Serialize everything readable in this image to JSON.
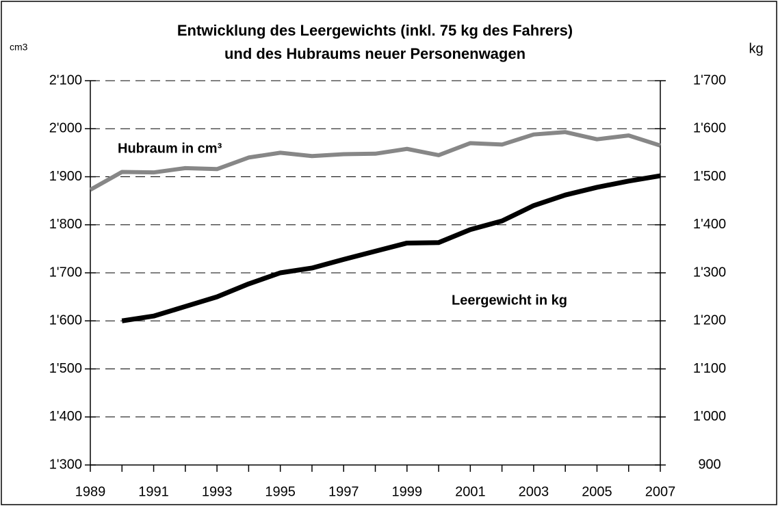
{
  "chart_data": {
    "type": "line",
    "title": [
      "Entwicklung des Leergewichts (inkl. 75 kg des Fahrers)",
      "und des Hubraums neuer Personenwagen"
    ],
    "y_unit": "cm3",
    "y2_unit": "kg",
    "x": [
      1989,
      1990,
      1991,
      1992,
      1993,
      1994,
      1995,
      1996,
      1997,
      1998,
      1999,
      2000,
      2001,
      2002,
      2003,
      2004,
      2005,
      2006,
      2007
    ],
    "xlim": [
      1989,
      2007
    ],
    "xticks": [
      1989,
      1991,
      1993,
      1995,
      1997,
      1999,
      2001,
      2003,
      2005,
      2007
    ],
    "ylim": [
      1300,
      2100
    ],
    "yticks": [
      {
        "value": 1300,
        "label": "1'300"
      },
      {
        "value": 1400,
        "label": "1'400"
      },
      {
        "value": 1500,
        "label": "1'500"
      },
      {
        "value": 1600,
        "label": "1'600"
      },
      {
        "value": 1700,
        "label": "1'700"
      },
      {
        "value": 1800,
        "label": "1'800"
      },
      {
        "value": 1900,
        "label": "1'900"
      },
      {
        "value": 2000,
        "label": "2'000"
      },
      {
        "value": 2100,
        "label": "2'100"
      }
    ],
    "y2lim": [
      900,
      1700
    ],
    "y2ticks": [
      900,
      {
        "value": 1000,
        "label": "1'000"
      },
      {
        "value": 1100,
        "label": "1'100"
      },
      {
        "value": 1200,
        "label": "1'200"
      },
      {
        "value": 1300,
        "label": "1'300"
      },
      {
        "value": 1400,
        "label": "1'400"
      },
      {
        "value": 1500,
        "label": "1'500"
      },
      {
        "value": 1600,
        "label": "1'600"
      },
      {
        "value": 1700,
        "label": "1'700"
      }
    ],
    "grid": true,
    "series": [
      {
        "name": "Hubraum in cm³",
        "color": "#878787",
        "axis": "y",
        "values": [
          1873,
          1910,
          1909,
          1918,
          1916,
          1940,
          1950,
          1943,
          1947,
          1948,
          1958,
          1945,
          1970,
          1967,
          1988,
          1993,
          1978,
          1986,
          1965
        ]
      },
      {
        "name": "Leergewicht in kg",
        "color": "#000000",
        "axis": "y2",
        "values": [
          null,
          1200,
          1210,
          1230,
          1250,
          1277,
          1300,
          1310,
          1328,
          1345,
          1362,
          1363,
          1390,
          1408,
          1440,
          1462,
          1478,
          1491,
          1502
        ]
      }
    ]
  }
}
